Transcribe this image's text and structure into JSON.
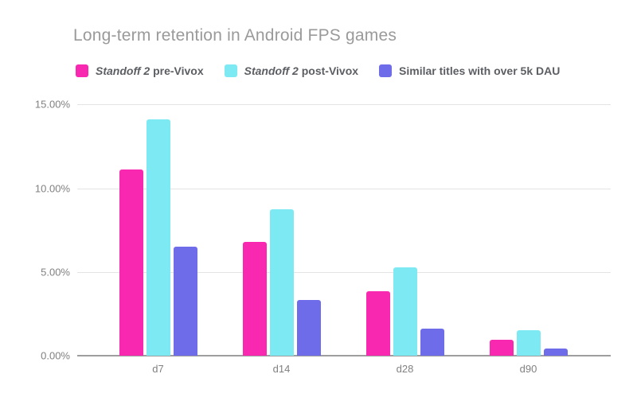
{
  "title": "Long-term retention in Android FPS games",
  "legend": {
    "items": [
      {
        "italic": "Standoff 2",
        "rest": " pre-Vivox",
        "color": "#f928b1"
      },
      {
        "italic": "Standoff 2",
        "rest": " post-Vivox",
        "color": "#7de9f3"
      },
      {
        "italic": "",
        "rest": "Similar titles with over 5k DAU",
        "color": "#6e6ce8"
      }
    ]
  },
  "colors": {
    "series_pre_vivox": "#f928b1",
    "series_post_vivox": "#7de9f3",
    "series_similar_titles": "#6e6ce8",
    "title_text": "#9a9a9a",
    "axis_text": "#818181",
    "gridline": "#e4e4e4",
    "axis_line": "#9e9e9e",
    "background": "#ffffff"
  },
  "chart_data": {
    "type": "bar",
    "title": "Long-term retention in Android FPS games",
    "categories": [
      "d7",
      "d14",
      "d28",
      "d90"
    ],
    "series": [
      {
        "name": "Standoff 2 pre-Vivox",
        "color": "#f928b1",
        "values": [
          11.1,
          6.8,
          3.85,
          0.95
        ]
      },
      {
        "name": "Standoff 2 post-Vivox",
        "color": "#7de9f3",
        "values": [
          14.1,
          8.75,
          5.25,
          1.5
        ]
      },
      {
        "name": "Similar titles with over 5k DAU",
        "color": "#6e6ce8",
        "values": [
          6.5,
          3.3,
          1.6,
          0.45
        ]
      }
    ],
    "xlabel": "",
    "ylabel": "",
    "ylim": [
      0,
      15
    ],
    "yticks": [
      "15.00%",
      "10.00%",
      "5.00%",
      "0.00%"
    ],
    "grid": true,
    "legend_position": "top"
  }
}
